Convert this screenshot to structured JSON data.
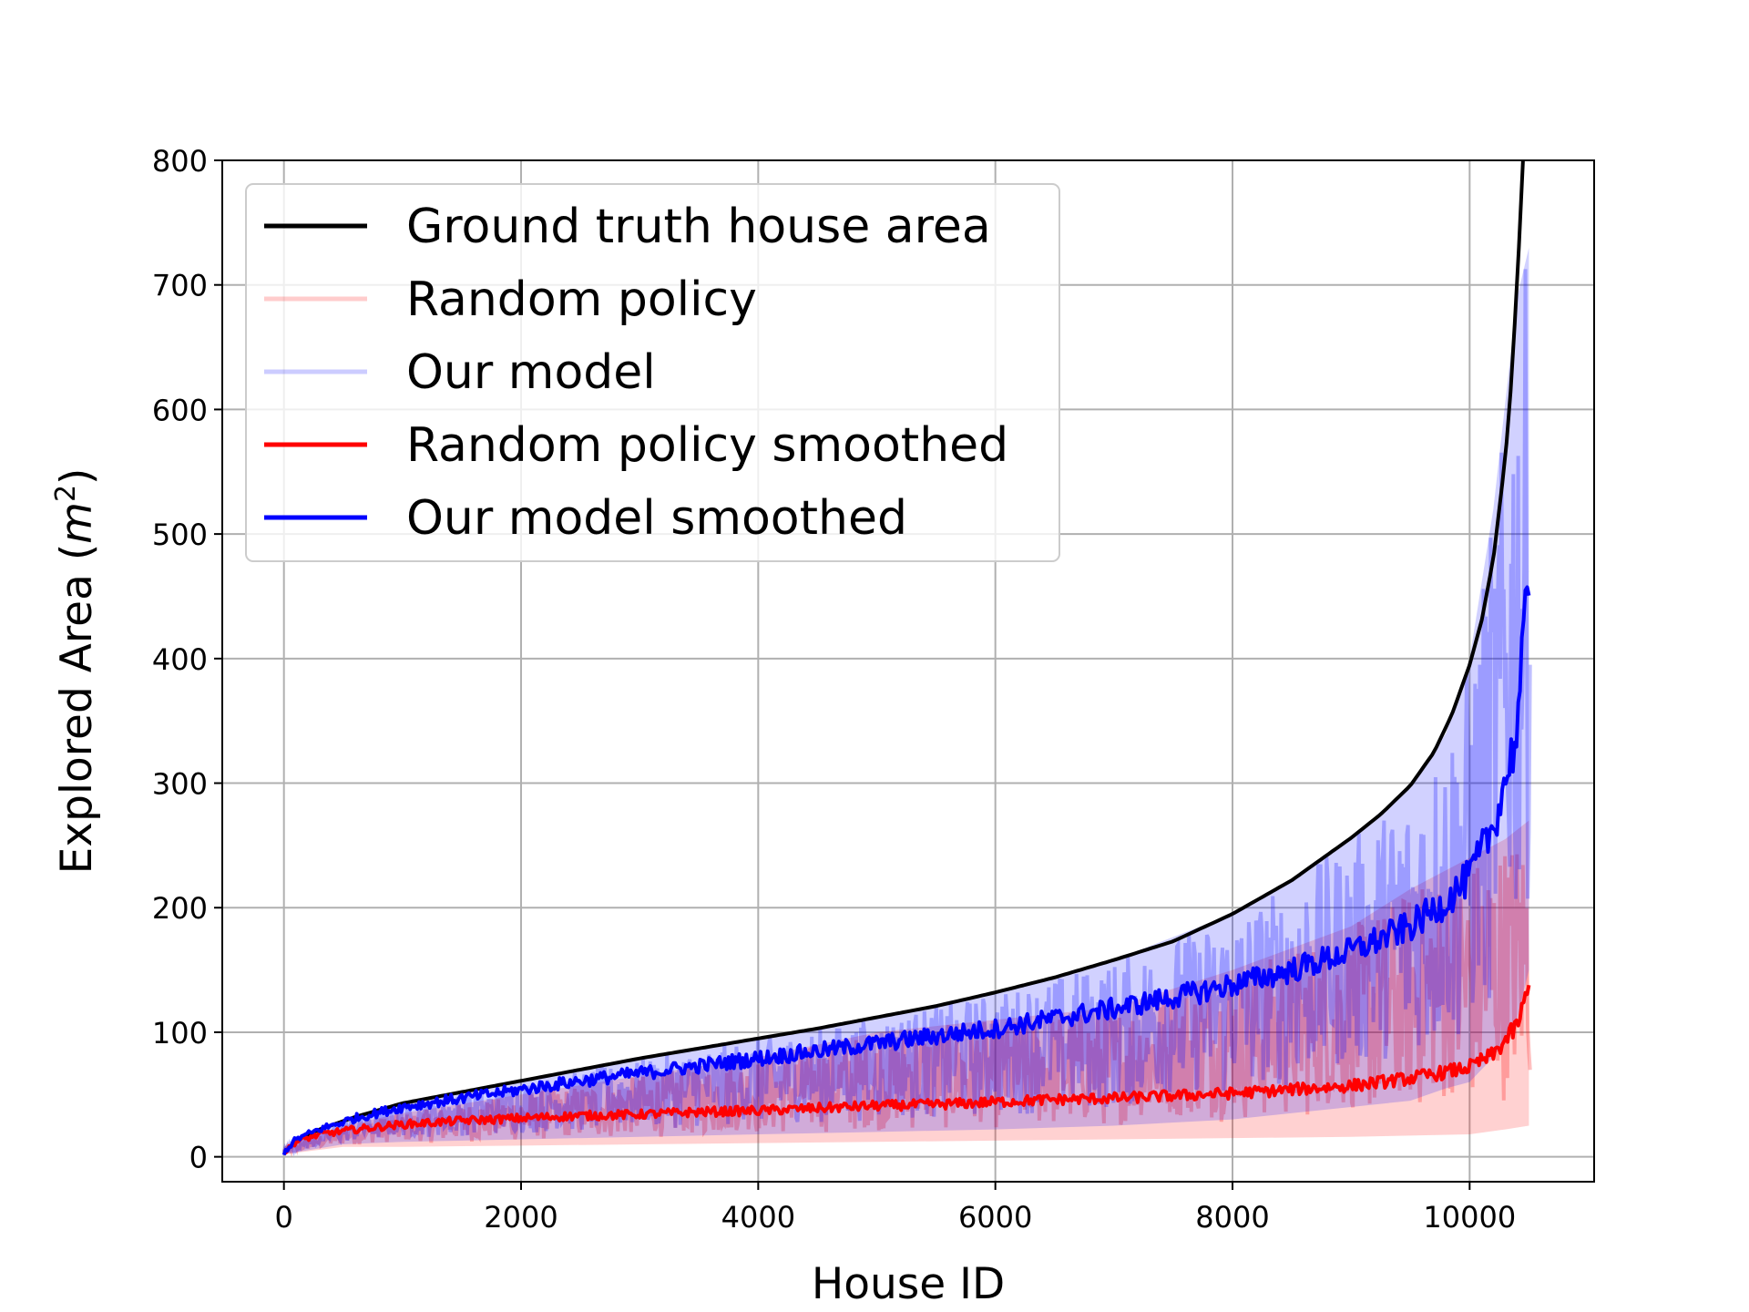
{
  "chart_data": {
    "type": "line",
    "title": "",
    "xlabel": "House ID",
    "ylabel": "Explored Area (m²)",
    "ylabel_prefix": "Explored Area (",
    "ylabel_unit": "m",
    "ylabel_exponent": "2",
    "ylabel_suffix": ")",
    "xlim": [
      -520,
      11050
    ],
    "ylim": [
      -20,
      800
    ],
    "xticks": [
      0,
      2000,
      4000,
      6000,
      8000,
      10000
    ],
    "yticks": [
      0,
      100,
      200,
      300,
      400,
      500,
      600,
      700,
      800
    ],
    "grid": true,
    "legend_position": "top-left",
    "series": [
      {
        "name": "Ground truth house area",
        "color": "#000000",
        "opacity": 1.0,
        "style": "line",
        "x": [
          0,
          100,
          300,
          600,
          1000,
          1500,
          2000,
          2500,
          3000,
          3500,
          4000,
          4500,
          5000,
          5500,
          6000,
          6500,
          7000,
          7500,
          8000,
          8500,
          9000,
          9250,
          9500,
          9700,
          9850,
          10000,
          10100,
          10200,
          10300,
          10350,
          10400,
          10450
        ],
        "values": [
          3,
          13,
          22,
          32,
          43,
          52,
          61,
          70,
          79,
          87,
          95,
          103,
          112,
          121,
          132,
          144,
          158,
          173,
          195,
          222,
          256,
          275,
          298,
          325,
          355,
          395,
          430,
          480,
          560,
          620,
          700,
          800
        ]
      },
      {
        "name": "Random policy",
        "color": "#ff0000",
        "opacity": 0.2,
        "style": "band",
        "x": [
          0,
          500,
          1000,
          2000,
          3000,
          4000,
          5000,
          6000,
          7000,
          8000,
          9000,
          9500,
          10000,
          10300,
          10500
        ],
        "lower": [
          2,
          8,
          8,
          9,
          10,
          11,
          12,
          13,
          14,
          15,
          16,
          17,
          18,
          22,
          25
        ],
        "upper": [
          8,
          25,
          35,
          50,
          65,
          80,
          100,
          110,
          120,
          150,
          185,
          215,
          240,
          255,
          270
        ]
      },
      {
        "name": "Our model",
        "color": "#0000ff",
        "opacity": 0.2,
        "style": "band",
        "x": [
          0,
          500,
          1000,
          2000,
          3000,
          4000,
          5000,
          6000,
          7000,
          8000,
          8500,
          9000,
          9500,
          9800,
          10000,
          10200,
          10400,
          10500
        ],
        "lower": [
          2,
          10,
          12,
          14,
          16,
          18,
          20,
          22,
          25,
          30,
          35,
          40,
          45,
          55,
          60,
          80,
          110,
          150
        ],
        "upper": [
          8,
          30,
          43,
          60,
          78,
          95,
          112,
          132,
          158,
          195,
          222,
          256,
          298,
          340,
          400,
          520,
          690,
          730
        ]
      },
      {
        "name": "Random policy smoothed",
        "color": "#ff0000",
        "opacity": 1.0,
        "style": "line",
        "x": [
          0,
          100,
          300,
          600,
          1000,
          1500,
          2000,
          2500,
          3000,
          3500,
          4000,
          4500,
          5000,
          5500,
          6000,
          6500,
          7000,
          7500,
          8000,
          8500,
          9000,
          9500,
          9800,
          10000,
          10200,
          10400,
          10500
        ],
        "values": [
          3,
          12,
          18,
          22,
          26,
          29,
          31,
          33,
          34,
          36,
          37,
          39,
          41,
          42,
          44,
          46,
          47,
          49,
          51,
          54,
          57,
          63,
          68,
          72,
          82,
          105,
          135
        ]
      },
      {
        "name": "Our model smoothed",
        "color": "#0000ff",
        "opacity": 1.0,
        "style": "line",
        "x": [
          0,
          100,
          300,
          600,
          1000,
          1500,
          2000,
          2500,
          3000,
          3500,
          4000,
          4500,
          5000,
          5500,
          6000,
          6500,
          7000,
          7500,
          8000,
          8500,
          9000,
          9500,
          9800,
          10000,
          10200,
          10400,
          10500
        ],
        "values": [
          3,
          14,
          22,
          31,
          40,
          47,
          54,
          61,
          67,
          73,
          79,
          85,
          91,
          97,
          103,
          111,
          119,
          128,
          138,
          150,
          165,
          185,
          205,
          225,
          265,
          340,
          470
        ]
      }
    ]
  }
}
